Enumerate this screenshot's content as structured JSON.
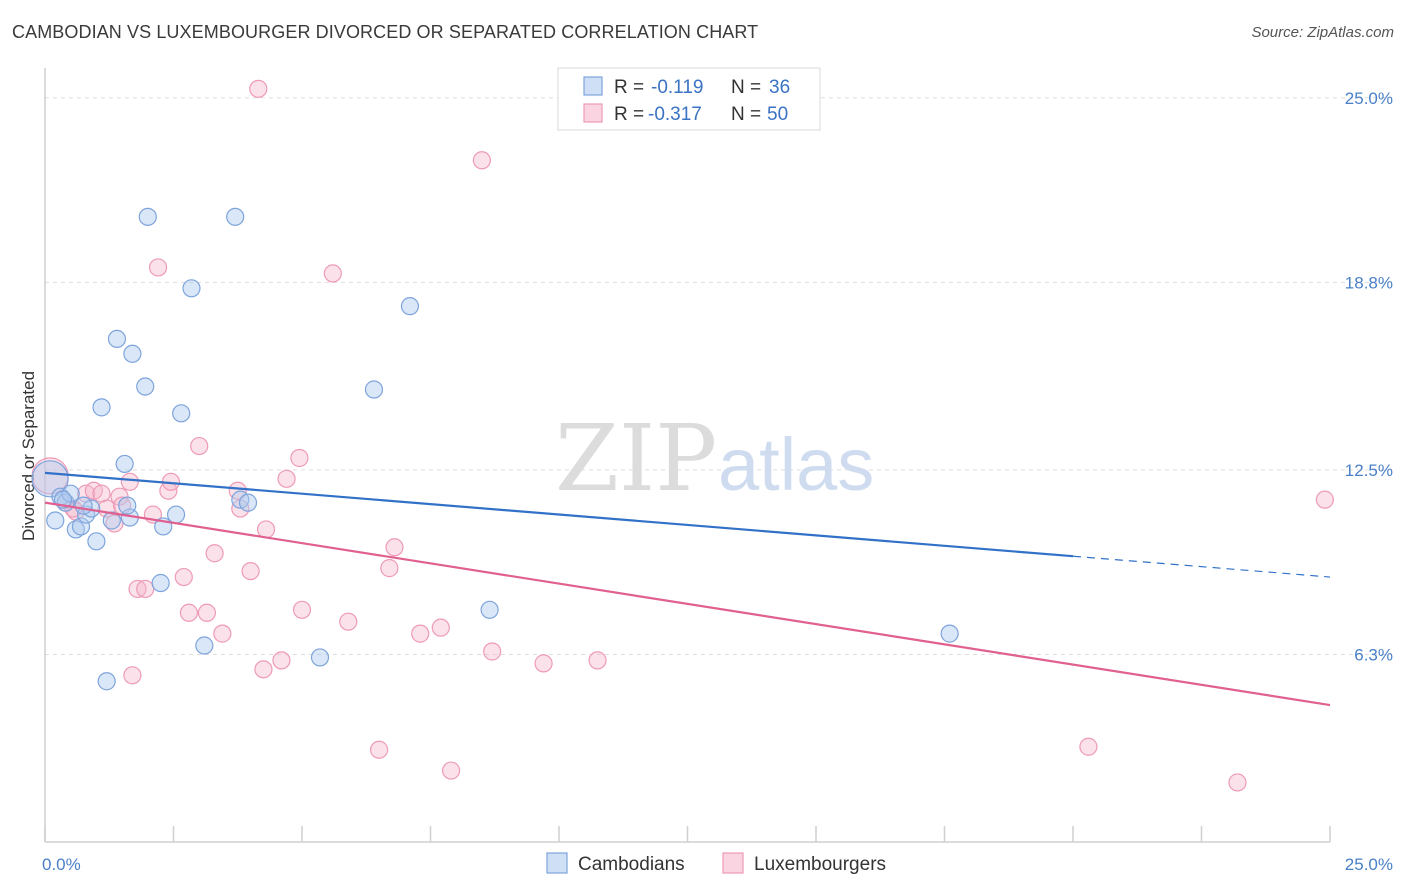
{
  "header": {
    "title": "CAMBODIAN VS LUXEMBOURGER DIVORCED OR SEPARATED CORRELATION CHART",
    "source": "Source: ZipAtlas.com"
  },
  "watermark": {
    "zip": "ZIP",
    "atlas": "atlas"
  },
  "colors": {
    "cambodians": "#7ea4dc",
    "luxembourgers": "#ee9ab6",
    "blue_line": "#3271c8",
    "pink_line": "#e0608f"
  },
  "chart_data": {
    "type": "scatter",
    "title": "CAMBODIAN VS LUXEMBOURGER DIVORCED OR SEPARATED CORRELATION CHART",
    "xlabel": "",
    "ylabel": "Divorced or Separated",
    "xlim": [
      0,
      25
    ],
    "ylim": [
      0,
      26
    ],
    "x_tick_labels": [
      {
        "value": 0,
        "label": "0.0%"
      },
      {
        "value": 25,
        "label": "25.0%"
      }
    ],
    "y_tick_labels": [
      {
        "value": 6.3,
        "label": "6.3%"
      },
      {
        "value": 12.5,
        "label": "12.5%"
      },
      {
        "value": 18.8,
        "label": "18.8%"
      },
      {
        "value": 25.0,
        "label": "25.0%"
      }
    ],
    "legend": {
      "r_label": "R =",
      "n_label": "N =",
      "entries": [
        {
          "name": "Cambodians",
          "r": "-0.119",
          "n": "36"
        },
        {
          "name": "Luxembourgers",
          "r": "-0.317",
          "n": "50"
        }
      ]
    },
    "series": [
      {
        "name": "Cambodians",
        "points": [
          [
            0.1,
            12.2
          ],
          [
            0.2,
            10.8
          ],
          [
            0.3,
            11.6
          ],
          [
            0.4,
            11.4
          ],
          [
            0.5,
            11.7
          ],
          [
            0.6,
            10.5
          ],
          [
            0.7,
            10.6
          ],
          [
            0.8,
            11.0
          ],
          [
            0.9,
            11.2
          ],
          [
            1.0,
            10.1
          ],
          [
            1.1,
            14.6
          ],
          [
            1.2,
            5.4
          ],
          [
            1.3,
            10.8
          ],
          [
            1.4,
            16.9
          ],
          [
            1.55,
            12.7
          ],
          [
            1.65,
            10.9
          ],
          [
            1.7,
            16.4
          ],
          [
            1.95,
            15.3
          ],
          [
            2.0,
            21.0
          ],
          [
            2.25,
            8.7
          ],
          [
            2.3,
            10.6
          ],
          [
            2.55,
            11.0
          ],
          [
            2.65,
            14.4
          ],
          [
            2.85,
            18.6
          ],
          [
            3.1,
            6.6
          ],
          [
            3.7,
            21.0
          ],
          [
            3.8,
            11.5
          ],
          [
            3.95,
            11.4
          ],
          [
            5.35,
            6.2
          ],
          [
            6.4,
            15.2
          ],
          [
            7.1,
            18.0
          ],
          [
            8.65,
            7.8
          ],
          [
            17.6,
            7.0
          ],
          [
            0.35,
            11.5
          ],
          [
            1.6,
            11.3
          ],
          [
            0.75,
            11.3
          ]
        ]
      },
      {
        "name": "Luxembourgers",
        "points": [
          [
            0.1,
            12.3
          ],
          [
            0.4,
            11.4
          ],
          [
            0.6,
            11.1
          ],
          [
            0.8,
            11.7
          ],
          [
            0.95,
            11.8
          ],
          [
            1.1,
            11.7
          ],
          [
            1.2,
            11.2
          ],
          [
            1.35,
            10.7
          ],
          [
            1.45,
            11.6
          ],
          [
            1.5,
            11.3
          ],
          [
            1.7,
            5.6
          ],
          [
            1.65,
            12.1
          ],
          [
            1.8,
            8.5
          ],
          [
            1.95,
            8.5
          ],
          [
            2.1,
            11.0
          ],
          [
            2.2,
            19.3
          ],
          [
            2.4,
            11.8
          ],
          [
            2.45,
            12.1
          ],
          [
            2.7,
            8.9
          ],
          [
            2.8,
            7.7
          ],
          [
            3.0,
            13.3
          ],
          [
            3.15,
            7.7
          ],
          [
            3.3,
            9.7
          ],
          [
            3.45,
            7.0
          ],
          [
            3.75,
            11.8
          ],
          [
            3.8,
            11.2
          ],
          [
            4.0,
            9.1
          ],
          [
            4.15,
            25.3
          ],
          [
            4.25,
            5.8
          ],
          [
            4.3,
            10.5
          ],
          [
            4.6,
            6.1
          ],
          [
            4.7,
            12.2
          ],
          [
            4.95,
            12.9
          ],
          [
            5.0,
            7.8
          ],
          [
            5.6,
            19.1
          ],
          [
            5.9,
            7.4
          ],
          [
            6.5,
            3.1
          ],
          [
            6.7,
            9.2
          ],
          [
            6.8,
            9.9
          ],
          [
            7.3,
            7.0
          ],
          [
            7.7,
            7.2
          ],
          [
            7.9,
            2.4
          ],
          [
            8.5,
            22.9
          ],
          [
            8.7,
            6.4
          ],
          [
            9.7,
            6.0
          ],
          [
            10.75,
            6.1
          ],
          [
            20.3,
            3.2
          ],
          [
            23.2,
            2.0
          ],
          [
            24.9,
            11.5
          ],
          [
            0.55,
            11.2
          ]
        ]
      }
    ],
    "regression": [
      {
        "name": "Cambodians",
        "x0": 0,
        "y0": 12.4,
        "x1": 20,
        "y1": 9.6,
        "dashed_to_x": 25,
        "dashed_to_y": 8.9
      },
      {
        "name": "Luxembourgers",
        "x0": 0,
        "y0": 11.4,
        "x1": 25,
        "y1": 4.6
      }
    ]
  }
}
